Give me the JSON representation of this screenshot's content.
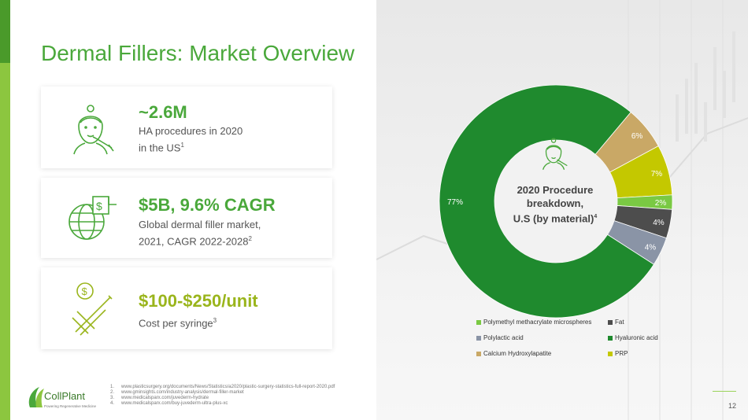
{
  "slide": {
    "title": "Dermal Fillers: Market Overview",
    "page_number": "12"
  },
  "cards": [
    {
      "headline": "~2.6M",
      "desc_line1": "HA procedures in 2020",
      "desc_line2": "in the US",
      "desc_sup": "1",
      "icon": "face-syringe-icon"
    },
    {
      "headline": "$5B, 9.6% CAGR",
      "desc_line1": "Global dermal filler market,",
      "desc_line2": "2021, CAGR 2022-2028",
      "desc_sup": "2",
      "icon": "globe-dollar-icon"
    },
    {
      "headline": "$100-$250/unit",
      "desc_line1": "Cost per syringe",
      "desc_line2": "",
      "desc_sup": "3",
      "icon": "dollar-syringe-icon"
    }
  ],
  "references": [
    {
      "n": "1.",
      "text": "www.plasticsurgery.org/documents/News/Statistics/a2020/plastic-surgery-statistics-full-report-2020.pdf"
    },
    {
      "n": "2.",
      "text": "www.gminsights.com/industry-analysis/dermal-filler-market"
    },
    {
      "n": "3.",
      "text": "www.medicalsparx.com/juvederm-hydrate"
    },
    {
      "n": "4.",
      "text": "www.medicalsparx.com/buy-juvederm-ultra-plus-xc"
    }
  ],
  "logo": {
    "name": "CollPlant",
    "tagline": "Powering Regenerative Medicine"
  },
  "chart_data": {
    "type": "pie",
    "donut": true,
    "center_label": [
      "2020 Procedure",
      "breakdown,",
      "U.S (by material)"
    ],
    "center_label_sup": "4",
    "slices": [
      {
        "name": "Hyaluronic acid",
        "value": 77,
        "label": "77%",
        "color": "#1f8a2e"
      },
      {
        "name": "Calcium Hydroxylapatite",
        "value": 6,
        "label": "6%",
        "color": "#c9a866"
      },
      {
        "name": "PRP",
        "value": 7,
        "label": "7%",
        "color": "#c4c800"
      },
      {
        "name": "Polymethyl methacrylate microspheres",
        "value": 2,
        "label": "2%",
        "color": "#7ac943"
      },
      {
        "name": "Fat",
        "value": 4,
        "label": "4%",
        "color": "#4d4d4d"
      },
      {
        "name": "Polylactic acid",
        "value": 4,
        "label": "4%",
        "color": "#8a94a6"
      }
    ],
    "legend": [
      {
        "name": "Polymethyl methacrylate microspheres",
        "color": "#7ac943"
      },
      {
        "name": "Fat",
        "color": "#4d4d4d"
      },
      {
        "name": "Polylactic acid",
        "color": "#8a94a6"
      },
      {
        "name": "Hyaluronic acid",
        "color": "#1f8a2e"
      },
      {
        "name": "Calcium Hydroxylapatite",
        "color": "#c9a866"
      },
      {
        "name": "PRP",
        "color": "#c4c800"
      }
    ],
    "legend_position": "bottom"
  }
}
